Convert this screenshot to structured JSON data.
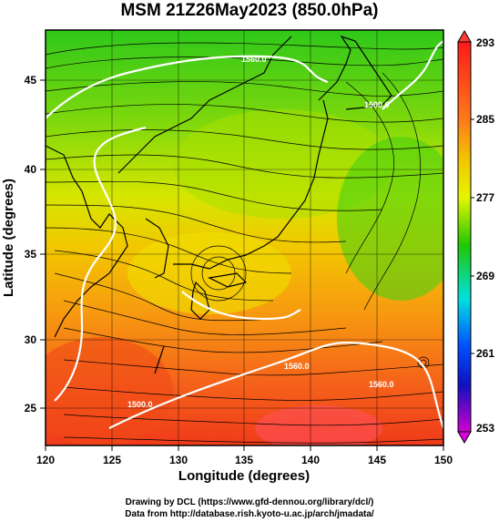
{
  "title": "MSM 21Z26May2023 (850.0hPa)",
  "axes": {
    "xlabel": "Longitude (degrees)",
    "ylabel": "Latitude  (degrees)",
    "x_ticks": [
      "120",
      "125",
      "130",
      "135",
      "140",
      "145",
      "150"
    ],
    "y_ticks": [
      "45",
      "40",
      "35",
      "30",
      "25"
    ]
  },
  "colorbar": {
    "labels": [
      "293",
      "285",
      "277",
      "269",
      "261",
      "253"
    ],
    "colors": [
      "#ff1a1a",
      "#ff7a1a",
      "#f2c400",
      "#e6f500",
      "#20c800",
      "#00e0e0",
      "#0050ff",
      "#1010c0",
      "#d000d0"
    ]
  },
  "contour_labels": [
    "1560.0",
    "1500.0",
    "1500.0",
    "1560.0",
    "1560.0"
  ],
  "credits": {
    "line1": "Drawing by DCL (https://www.gfd-dennou.org/library/dcl/)",
    "line2": "Data from http://database.rish.kyoto-u.ac.jp/arch/jmadata/"
  }
}
